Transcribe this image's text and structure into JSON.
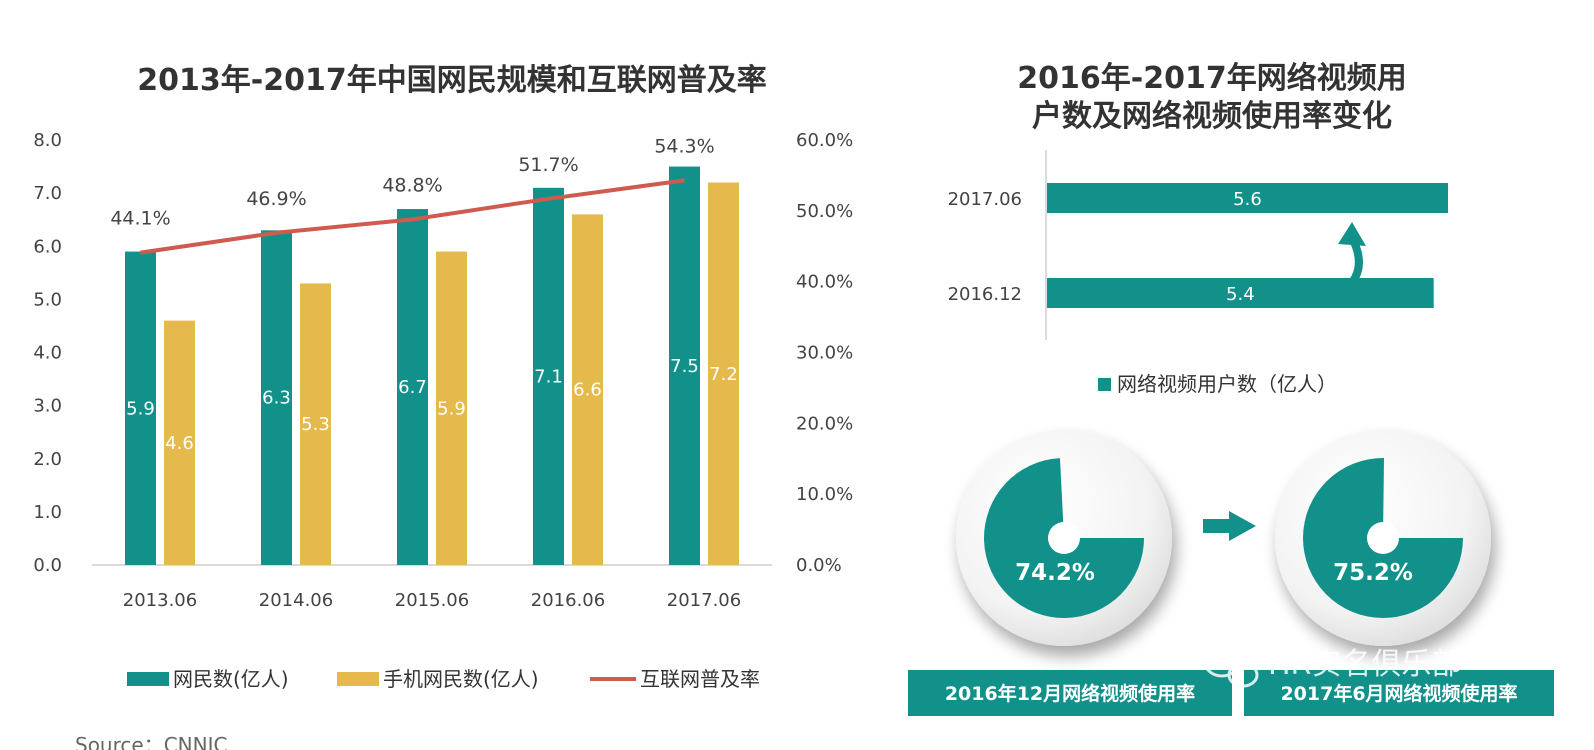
{
  "colors": {
    "teal": "#12918a",
    "gold": "#e6b94c",
    "red": "#cf5a4e",
    "grid": "#cfcfcf",
    "text": "#444444"
  },
  "chart_data": [
    {
      "type": "bar",
      "title": "2013年-2017年中国网民规模和互联网普及率",
      "categories": [
        "2013.06",
        "2014.06",
        "2015.06",
        "2016.06",
        "2017.06"
      ],
      "series": [
        {
          "name": "网民数(亿人)",
          "values": [
            5.9,
            6.3,
            6.7,
            7.1,
            7.5
          ],
          "labels": [
            "5.9",
            "6.3",
            "6.7",
            "7.1",
            "7.5"
          ],
          "color": "#12918a"
        },
        {
          "name": "手机网民数(亿人)",
          "values": [
            4.6,
            5.3,
            5.9,
            6.6,
            7.2
          ],
          "labels": [
            "4.6",
            "5.3",
            "5.9",
            "6.6",
            "7.2"
          ],
          "color": "#e6b94c"
        },
        {
          "name": "互联网普及率",
          "type": "line",
          "axis": "right",
          "values": [
            44.1,
            46.9,
            48.8,
            51.7,
            54.3
          ],
          "labels": [
            "44.1%",
            "46.9%",
            "48.8%",
            "51.7%",
            "54.3%"
          ],
          "color": "#cf5a4e"
        }
      ],
      "ylim": [
        0,
        8
      ],
      "y_ticks": [
        "0.0",
        "1.0",
        "2.0",
        "3.0",
        "4.0",
        "5.0",
        "6.0",
        "7.0",
        "8.0"
      ],
      "y2lim": [
        0,
        60
      ],
      "y2_ticks": [
        "0.0%",
        "10.0%",
        "20.0%",
        "30.0%",
        "40.0%",
        "50.0%",
        "60.0%"
      ],
      "legend": "bottom",
      "source": "Source：CNNIC"
    },
    {
      "type": "bar",
      "orientation": "horizontal",
      "title": [
        "2016年-2017年网络视频用",
        "户数及网络视频使用率变化"
      ],
      "categories": [
        "2017.06",
        "2016.12"
      ],
      "series": [
        {
          "name": "网络视频用户数（亿人）",
          "values": [
            5.6,
            5.4
          ],
          "labels": [
            "5.6",
            "5.4"
          ],
          "color": "#12918a"
        }
      ],
      "legend": "bottom"
    },
    {
      "type": "pie",
      "title": "2016年12月网络视频使用率",
      "values": [
        74.2
      ],
      "label": "74.2%"
    },
    {
      "type": "pie",
      "title": "2017年6月网络视频使用率",
      "values": [
        75.2
      ],
      "label": "75.2%"
    }
  ],
  "watermark": "HR实名俱乐部"
}
